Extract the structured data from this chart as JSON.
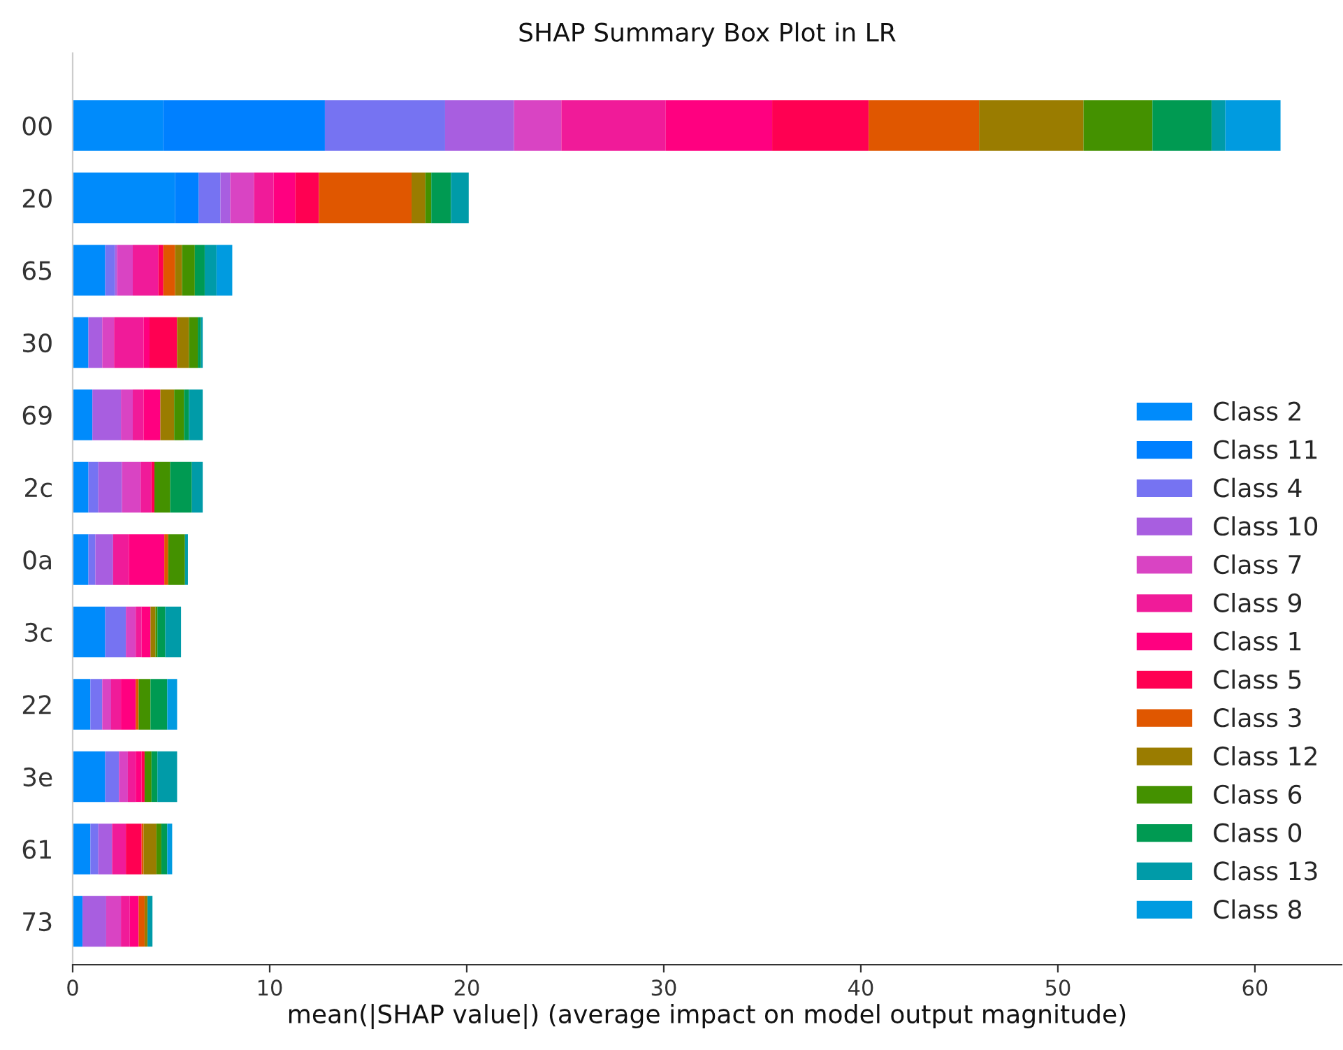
{
  "chart_data": {
    "type": "bar",
    "orientation": "horizontal",
    "stacked": true,
    "title": "SHAP Summary Box Plot in LR",
    "xlabel": "mean(|SHAP value|) (average impact on model output magnitude)",
    "categories": [
      "00",
      "20",
      "65",
      "30",
      "69",
      "2c",
      "0a",
      "3c",
      "22",
      "3e",
      "61",
      "73"
    ],
    "xlim": [
      0,
      64.4
    ],
    "xticks": [
      0,
      10,
      20,
      30,
      40,
      50,
      60
    ],
    "grid": false,
    "legend": "bottom right",
    "series": [
      {
        "name": "Class 2",
        "color": "#008bfb",
        "values": [
          4.6,
          5.2,
          1.65,
          0.8,
          1.0,
          0.8,
          0.8,
          1.65,
          0.9,
          1.65,
          0.9,
          0.5
        ]
      },
      {
        "name": "Class 11",
        "color": "#0080ff",
        "values": [
          8.2,
          1.2,
          0,
          0,
          0,
          0,
          0,
          0,
          0,
          0,
          0,
          0
        ]
      },
      {
        "name": "Class 4",
        "color": "#7673f2",
        "values": [
          6.1,
          1.1,
          0.5,
          0,
          0,
          0.5,
          0.35,
          1.05,
          0.6,
          0.7,
          0.4,
          0
        ]
      },
      {
        "name": "Class 10",
        "color": "#a85ee0",
        "values": [
          3.5,
          0.5,
          0.1,
          0.7,
          1.45,
          1.2,
          0.9,
          0,
          0,
          0,
          0.7,
          1.2
        ]
      },
      {
        "name": "Class 7",
        "color": "#d944c3",
        "values": [
          2.4,
          1.2,
          0.8,
          0.6,
          0.6,
          0.95,
          0,
          0.5,
          0.45,
          0.45,
          0,
          0.75
        ]
      },
      {
        "name": "Class 9",
        "color": "#f01b99",
        "values": [
          5.3,
          1.0,
          1.3,
          1.5,
          0.55,
          0.55,
          0.8,
          0.3,
          0.5,
          0.4,
          0.7,
          0.45
        ]
      },
      {
        "name": "Class 1",
        "color": "#ff0080",
        "values": [
          5.4,
          1.1,
          0,
          0.3,
          0.85,
          0,
          1.8,
          0.45,
          0.75,
          0.3,
          0,
          0.45
        ]
      },
      {
        "name": "Class 5",
        "color": "#ff0052",
        "values": [
          4.9,
          1.2,
          0.25,
          1.4,
          0,
          0.15,
          0,
          0,
          0,
          0.15,
          0.8,
          0
        ]
      },
      {
        "name": "Class 3",
        "color": "#e05700",
        "values": [
          5.6,
          4.7,
          0.6,
          0,
          0,
          0,
          0.2,
          0,
          0.15,
          0,
          0.1,
          0.3
        ]
      },
      {
        "name": "Class 12",
        "color": "#9a7c00",
        "values": [
          5.3,
          0.7,
          0.35,
          0.6,
          0.7,
          0,
          0,
          0.25,
          0,
          0,
          0.65,
          0.15
        ]
      },
      {
        "name": "Class 6",
        "color": "#449100",
        "values": [
          3.5,
          0.3,
          0.65,
          0.45,
          0.5,
          0.8,
          0.85,
          0.1,
          0.6,
          0.35,
          0.25,
          0
        ]
      },
      {
        "name": "Class 0",
        "color": "#009a52",
        "values": [
          3.0,
          1.0,
          0.5,
          0.15,
          0.25,
          1.1,
          0,
          0.4,
          0.85,
          0.3,
          0.3,
          0
        ]
      },
      {
        "name": "Class 13",
        "color": "#009ba8",
        "values": [
          0.7,
          0.9,
          0.6,
          0.1,
          0.7,
          0.55,
          0.15,
          0.8,
          0,
          1.0,
          0,
          0.25
        ]
      },
      {
        "name": "Class 8",
        "color": "#009be0",
        "values": [
          2.8,
          0,
          0.8,
          0,
          0,
          0,
          0,
          0,
          0.5,
          0,
          0.25,
          0
        ]
      }
    ]
  }
}
